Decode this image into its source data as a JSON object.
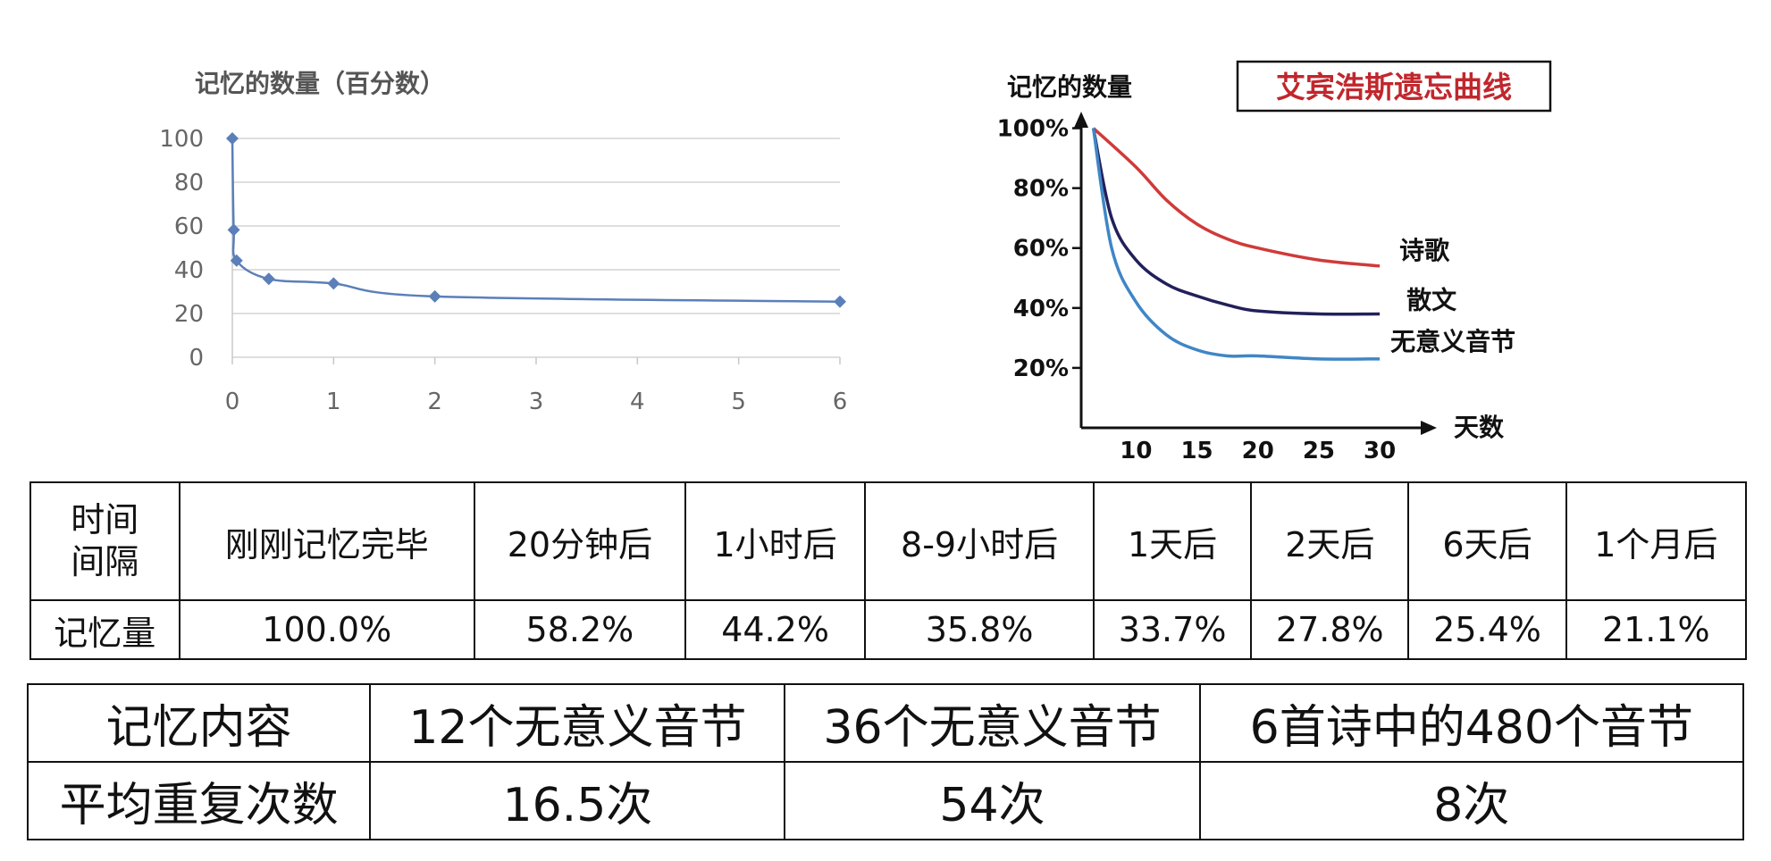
{
  "chart_data": [
    {
      "type": "scatter",
      "title": "",
      "ylabel": "记忆的数量（百分数）",
      "xlabel": "",
      "xlim": [
        0,
        6
      ],
      "ylim": [
        0,
        100
      ],
      "xticks": [
        "0",
        "1",
        "2",
        "3",
        "4",
        "5",
        "6"
      ],
      "yticks": [
        "0",
        "20",
        "40",
        "60",
        "80",
        "100"
      ],
      "grid": true,
      "color": "#5b7fb9",
      "points": [
        {
          "x": 0,
          "y": 100
        },
        {
          "x": 0.014,
          "y": 58.2
        },
        {
          "x": 0.042,
          "y": 44.2
        },
        {
          "x": 0.36,
          "y": 35.8
        },
        {
          "x": 1,
          "y": 33.7
        },
        {
          "x": 2,
          "y": 27.8
        },
        {
          "x": 6,
          "y": 25.4
        }
      ]
    },
    {
      "type": "line",
      "title": "艾宾浩斯遗忘曲线",
      "ylabel": "记忆的数量",
      "xlabel": "天数",
      "xticks": [
        "10",
        "15",
        "20",
        "25",
        "30"
      ],
      "yticks": [
        "20%",
        "40%",
        "60%",
        "80%",
        "100%"
      ],
      "grid": false,
      "series": [
        {
          "name": "诗歌",
          "color": "#d03a3a",
          "x": [
            6.5,
            10,
            12.5,
            15,
            17.5,
            20,
            25,
            30
          ],
          "y": [
            100,
            87,
            76,
            68,
            63,
            60,
            56,
            54
          ]
        },
        {
          "name": "散文",
          "color": "#22205a",
          "x": [
            6.5,
            8,
            10,
            12.5,
            15,
            17.5,
            20,
            25,
            30
          ],
          "y": [
            100,
            70,
            56,
            48,
            44,
            41,
            39,
            38,
            38
          ]
        },
        {
          "name": "无意义音节",
          "color": "#3f86c6",
          "x": [
            6.5,
            8,
            10,
            12.5,
            15,
            17.5,
            20,
            25,
            30
          ],
          "y": [
            100,
            60,
            42,
            31,
            26,
            24,
            24,
            23,
            23
          ]
        }
      ]
    }
  ],
  "retention_table": {
    "row_header_interval": [
      "时间",
      "间隔"
    ],
    "row_header_amount": "记忆量",
    "intervals": [
      "刚刚记忆完毕",
      "20分钟后",
      "1小时后",
      "8-9小时后",
      "1天后",
      "2天后",
      "6天后",
      "1个月后"
    ],
    "amounts": [
      "100.0%",
      "58.2%",
      "44.2%",
      "35.8%",
      "33.7%",
      "27.8%",
      "25.4%",
      "21.1%"
    ]
  },
  "repetition_table": {
    "content_header": "记忆内容",
    "repeat_header": "平均重复次数",
    "contents": [
      "12个无意义音节",
      "36个无意义音节",
      "6首诗中的480个音节"
    ],
    "repeats": [
      "16.5次",
      "54次",
      "8次"
    ]
  }
}
